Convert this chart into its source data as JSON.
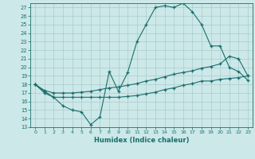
{
  "xlabel": "Humidex (Indice chaleur)",
  "background_color": "#cce8e8",
  "grid_color": "#aacccc",
  "line_color": "#1a6e6e",
  "xlim": [
    -0.5,
    23.5
  ],
  "ylim": [
    13,
    27.5
  ],
  "xticks": [
    0,
    1,
    2,
    3,
    4,
    5,
    6,
    7,
    8,
    9,
    10,
    11,
    12,
    13,
    14,
    15,
    16,
    17,
    18,
    19,
    20,
    21,
    22,
    23
  ],
  "yticks": [
    13,
    14,
    15,
    16,
    17,
    18,
    19,
    20,
    21,
    22,
    23,
    24,
    25,
    26,
    27
  ],
  "line1_x": [
    0,
    1,
    2,
    3,
    4,
    5,
    6,
    7,
    8,
    9,
    10,
    11,
    12,
    13,
    14,
    15,
    16,
    17,
    18,
    19,
    20,
    21,
    22,
    23
  ],
  "line1_y": [
    18,
    17,
    16.5,
    15.5,
    15,
    14.8,
    13.3,
    14.2,
    19.5,
    17.2,
    19.4,
    23,
    25,
    27,
    27.2,
    27,
    27.5,
    26.5,
    25,
    22.5,
    22.5,
    20,
    19.5,
    18.5
  ],
  "line2_x": [
    0,
    1,
    2,
    3,
    4,
    5,
    6,
    7,
    8,
    9,
    10,
    11,
    12,
    13,
    14,
    15,
    16,
    17,
    18,
    19,
    20,
    21,
    22,
    23
  ],
  "line2_y": [
    18,
    17.3,
    17,
    17,
    17,
    17.1,
    17.2,
    17.4,
    17.6,
    17.7,
    17.9,
    18.1,
    18.4,
    18.6,
    18.9,
    19.2,
    19.4,
    19.6,
    19.9,
    20.1,
    20.4,
    21.3,
    21.0,
    19.0
  ],
  "line3_x": [
    0,
    1,
    2,
    3,
    4,
    5,
    6,
    7,
    8,
    9,
    10,
    11,
    12,
    13,
    14,
    15,
    16,
    17,
    18,
    19,
    20,
    21,
    22,
    23
  ],
  "line3_y": [
    18,
    17.2,
    16.5,
    16.5,
    16.5,
    16.5,
    16.5,
    16.5,
    16.5,
    16.5,
    16.6,
    16.7,
    16.9,
    17.1,
    17.4,
    17.6,
    17.9,
    18.1,
    18.4,
    18.4,
    18.6,
    18.7,
    18.8,
    19.0
  ]
}
